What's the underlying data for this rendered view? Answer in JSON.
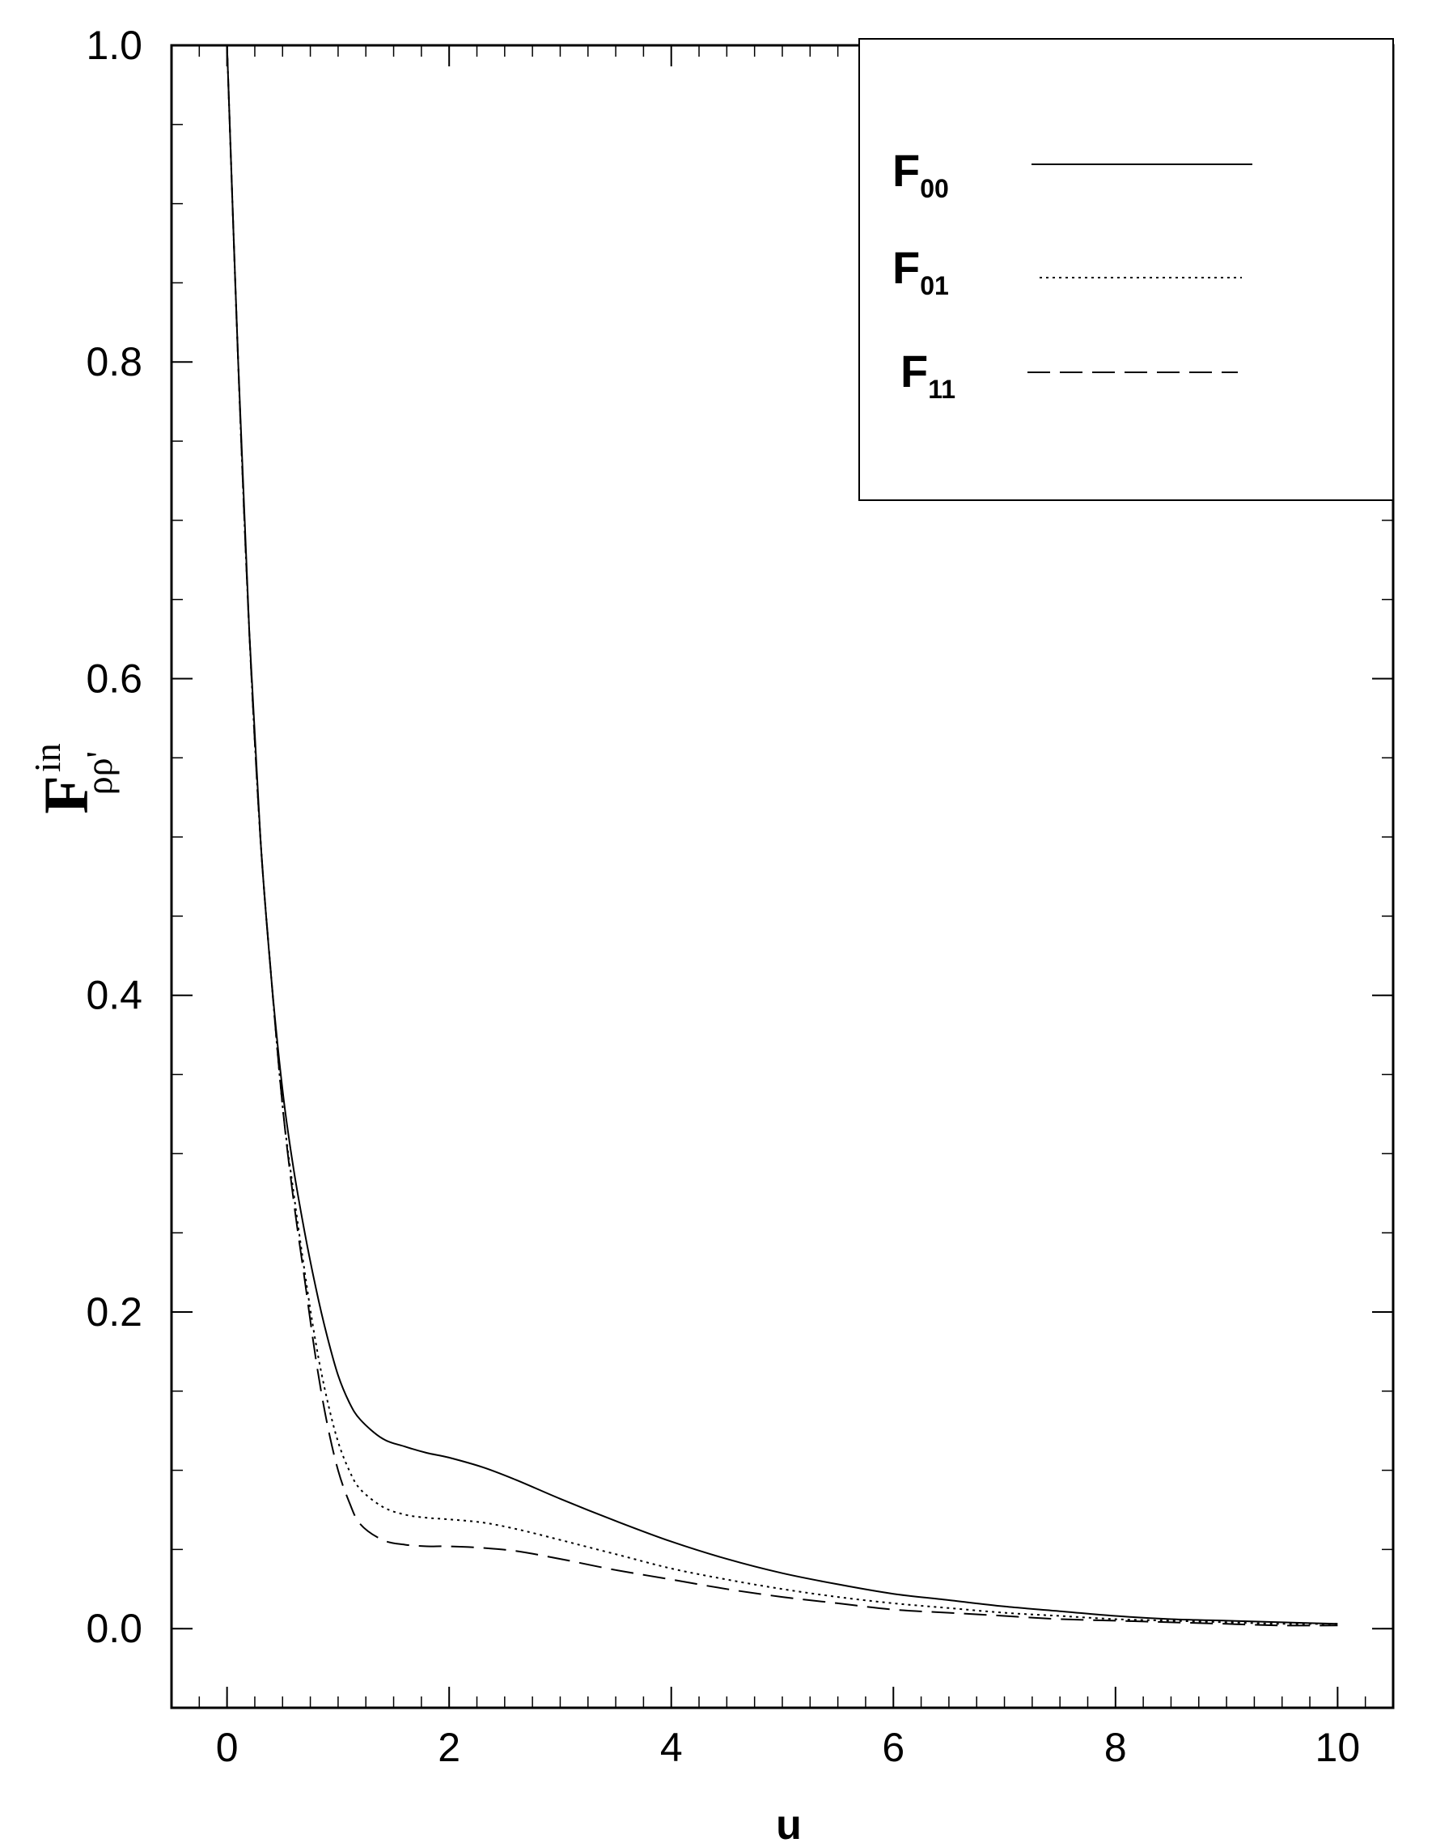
{
  "chart_data": {
    "type": "line",
    "xlabel": "u",
    "ylabel": {
      "main": "F",
      "sup": "in",
      "sub": "ρρ'"
    },
    "xlim": [
      -0.5,
      10.5
    ],
    "ylim": [
      -0.05,
      1.0
    ],
    "xticks": [
      0,
      2,
      4,
      6,
      8,
      10
    ],
    "xtick_labels": [
      "0",
      "2",
      "4",
      "6",
      "8",
      "10"
    ],
    "yticks": [
      0.0,
      0.2,
      0.4,
      0.6,
      0.8,
      1.0
    ],
    "ytick_labels": [
      "0.0",
      "0.2",
      "0.4",
      "0.6",
      "0.8",
      "1.0"
    ],
    "grid": false,
    "legend_position": "top-right",
    "series": [
      {
        "name": "F00",
        "label_main": "F",
        "label_sub": "00",
        "style": "solid",
        "x": [
          0,
          0.1,
          0.2,
          0.3,
          0.4,
          0.5,
          0.6,
          0.7,
          0.8,
          0.9,
          1.0,
          1.1,
          1.2,
          1.4,
          1.6,
          1.8,
          2.0,
          2.3,
          2.6,
          3.0,
          3.5,
          4.0,
          4.5,
          5.0,
          5.5,
          6.0,
          6.5,
          7.0,
          7.5,
          8.0,
          8.5,
          9.0,
          9.5,
          10.0
        ],
        "y": [
          1.0,
          0.8,
          0.63,
          0.5,
          0.41,
          0.34,
          0.29,
          0.25,
          0.215,
          0.185,
          0.16,
          0.143,
          0.132,
          0.12,
          0.115,
          0.111,
          0.108,
          0.102,
          0.094,
          0.082,
          0.068,
          0.055,
          0.044,
          0.035,
          0.028,
          0.022,
          0.018,
          0.014,
          0.011,
          0.008,
          0.006,
          0.005,
          0.004,
          0.003
        ]
      },
      {
        "name": "F01",
        "label_main": "F",
        "label_sub": "01",
        "style": "dotted",
        "x": [
          0,
          0.1,
          0.2,
          0.3,
          0.4,
          0.5,
          0.6,
          0.7,
          0.8,
          0.9,
          1.0,
          1.1,
          1.2,
          1.4,
          1.6,
          1.8,
          2.0,
          2.3,
          2.6,
          3.0,
          3.5,
          4.0,
          4.5,
          5.0,
          5.5,
          6.0,
          6.5,
          7.0,
          7.5,
          8.0,
          8.5,
          9.0,
          9.5,
          10.0
        ],
        "y": [
          1.0,
          0.8,
          0.63,
          0.5,
          0.41,
          0.33,
          0.275,
          0.225,
          0.18,
          0.145,
          0.118,
          0.1,
          0.088,
          0.077,
          0.072,
          0.07,
          0.069,
          0.067,
          0.063,
          0.056,
          0.047,
          0.038,
          0.031,
          0.025,
          0.02,
          0.016,
          0.013,
          0.01,
          0.008,
          0.006,
          0.005,
          0.004,
          0.003,
          0.003
        ]
      },
      {
        "name": "F11",
        "label_main": "F",
        "label_sub": "11",
        "style": "dashed",
        "x": [
          0,
          0.1,
          0.2,
          0.3,
          0.4,
          0.5,
          0.6,
          0.7,
          0.8,
          0.9,
          1.0,
          1.1,
          1.2,
          1.4,
          1.6,
          1.8,
          2.0,
          2.3,
          2.6,
          3.0,
          3.5,
          4.0,
          4.5,
          5.0,
          5.5,
          6.0,
          6.5,
          7.0,
          7.5,
          8.0,
          8.5,
          9.0,
          9.5,
          10.0
        ],
        "y": [
          1.0,
          0.8,
          0.63,
          0.5,
          0.41,
          0.33,
          0.27,
          0.22,
          0.17,
          0.13,
          0.1,
          0.08,
          0.066,
          0.056,
          0.053,
          0.052,
          0.052,
          0.051,
          0.049,
          0.044,
          0.037,
          0.031,
          0.025,
          0.02,
          0.016,
          0.012,
          0.01,
          0.008,
          0.006,
          0.005,
          0.004,
          0.003,
          0.002,
          0.002
        ]
      }
    ]
  }
}
